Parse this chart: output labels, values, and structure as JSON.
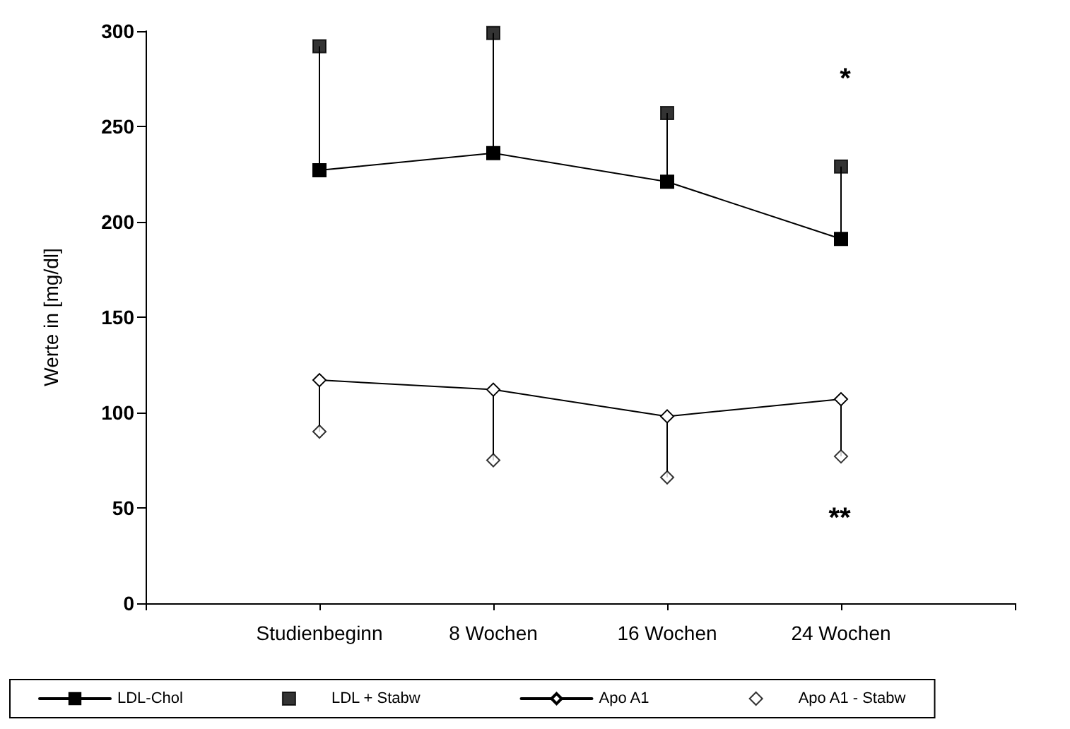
{
  "chart_data": {
    "type": "line",
    "ylabel": "Werte in [mg/dl]",
    "categories": [
      null,
      "Studienbeginn",
      "8 Wochen",
      "16 Wochen",
      "24 Wochen",
      null
    ],
    "series": [
      {
        "name": "LDL-Chol",
        "color": "#000000",
        "marker": "square",
        "values": [
          null,
          227,
          236,
          221,
          191,
          null
        ],
        "errors": [
          null,
          [
            227,
            292
          ],
          [
            236,
            299
          ],
          [
            221,
            257
          ],
          [
            191,
            229
          ],
          null
        ]
      },
      {
        "name": "LDL + Stabw",
        "type": "scatter",
        "color": "#000000",
        "marker": "square",
        "values": [
          null,
          292,
          299,
          257,
          229,
          null
        ]
      },
      {
        "name": "Apo A1",
        "color": "#000000",
        "marker": "diamond",
        "values": [
          null,
          117,
          112,
          98,
          107,
          null
        ],
        "errors": [
          null,
          [
            90,
            117
          ],
          [
            75,
            112
          ],
          [
            66,
            98
          ],
          [
            77,
            107
          ],
          null
        ]
      },
      {
        "name": "Apo A1 - Stabw",
        "type": "scatter",
        "color": "#000000",
        "marker": "diamond",
        "values": [
          null,
          90,
          75,
          66,
          77,
          null
        ]
      }
    ],
    "ylim": [
      0,
      300
    ],
    "yticks": [
      0,
      50,
      100,
      150,
      200,
      250,
      300
    ],
    "grid": false,
    "legend": "bottom",
    "line_style": "solid",
    "annotations": [
      "*",
      "**"
    ]
  }
}
